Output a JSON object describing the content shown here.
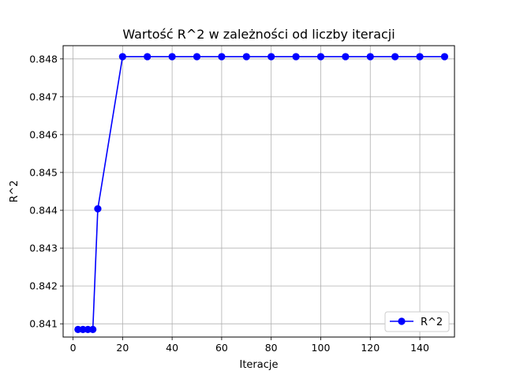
{
  "chart_data": {
    "type": "line",
    "title": "Wartość R^2 w zależności od liczby iteracji",
    "xlabel": "Iteracje",
    "ylabel": "R^2",
    "xlim": [
      -4,
      154
    ],
    "ylim": [
      0.84065,
      0.84835
    ],
    "x_ticks": [
      "0",
      "20",
      "40",
      "60",
      "80",
      "100",
      "120",
      "140"
    ],
    "x_tick_values": [
      0,
      20,
      40,
      60,
      80,
      100,
      120,
      140
    ],
    "y_ticks": [
      "0.841",
      "0.842",
      "0.843",
      "0.844",
      "0.845",
      "0.846",
      "0.847",
      "0.848"
    ],
    "y_tick_values": [
      0.841,
      0.842,
      0.843,
      0.844,
      0.845,
      0.846,
      0.847,
      0.848
    ],
    "grid": true,
    "legend_position": "lower-right",
    "series": [
      {
        "name": "R^2",
        "color": "#0000ff",
        "marker": "circle",
        "x": [
          2,
          4,
          6,
          8,
          10,
          20,
          30,
          40,
          50,
          60,
          70,
          80,
          90,
          100,
          110,
          120,
          130,
          140,
          150
        ],
        "y": [
          0.84085,
          0.84085,
          0.84085,
          0.84085,
          0.84404,
          0.84806,
          0.84806,
          0.84806,
          0.84806,
          0.84806,
          0.84806,
          0.84806,
          0.84806,
          0.84806,
          0.84806,
          0.84806,
          0.84806,
          0.84806,
          0.84806
        ]
      }
    ]
  }
}
